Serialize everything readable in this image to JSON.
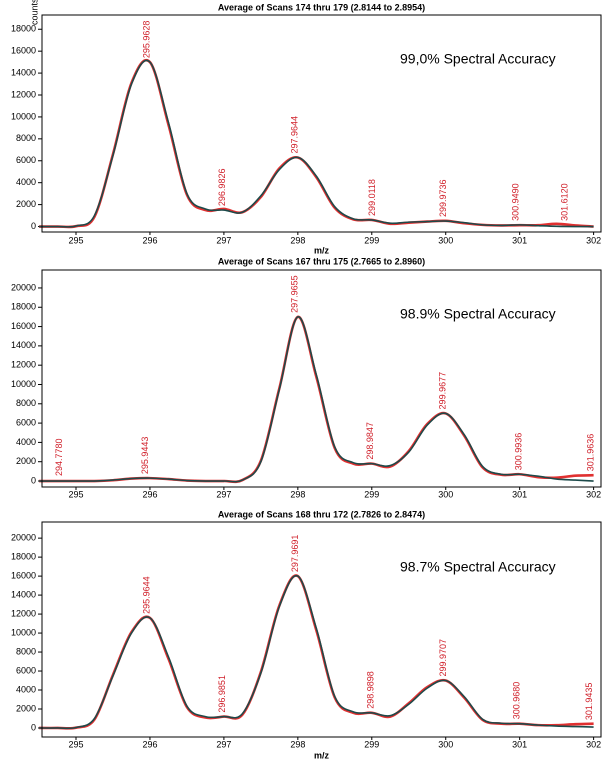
{
  "chart_data": [
    {
      "type": "line",
      "title": "Average of Scans 174 thru 179 (2.8144 to 2.8954)",
      "xlabel": "m/z",
      "ylabel": "counts",
      "annotation": "99,0% Spectral Accuracy",
      "x": [
        294.5,
        294.75,
        295,
        295.25,
        295.5,
        295.75,
        296,
        296.25,
        296.5,
        296.75,
        297,
        297.25,
        297.5,
        297.75,
        298,
        298.25,
        298.5,
        298.75,
        299,
        299.25,
        299.5,
        299.75,
        300,
        300.25,
        300.5,
        300.75,
        301,
        301.25,
        301.5,
        301.75,
        302
      ],
      "series": [
        {
          "name": "theoretical",
          "color": "#e03030",
          "values": [
            0,
            0,
            30,
            900,
            6600,
            13100,
            15000,
            9300,
            2900,
            1500,
            1600,
            1300,
            2700,
            5300,
            6300,
            4500,
            1700,
            650,
            600,
            250,
            350,
            450,
            520,
            300,
            150,
            100,
            120,
            120,
            250,
            100,
            0
          ]
        },
        {
          "name": "measured",
          "color": "#1d4a4a",
          "values": [
            0,
            0,
            50,
            1000,
            6500,
            13000,
            15000,
            9500,
            3000,
            1600,
            1500,
            1300,
            2800,
            5200,
            6300,
            4600,
            1800,
            700,
            600,
            300,
            400,
            450,
            500,
            350,
            150,
            100,
            150,
            80,
            20,
            0,
            0
          ]
        }
      ],
      "peak_labels": [
        {
          "value": 295.9628,
          "label": "295.9628"
        },
        {
          "value": 296.9826,
          "label": "296.9826"
        },
        {
          "value": 297.9644,
          "label": "297.9644"
        },
        {
          "value": 299.0118,
          "label": "299.0118"
        },
        {
          "value": 299.9736,
          "label": "299.9736"
        },
        {
          "value": 300.949,
          "label": "300.9490"
        },
        {
          "value": 301.612,
          "label": "301.6120"
        }
      ],
      "peak_heights": [
        15000,
        1500,
        6300,
        600,
        500,
        150,
        150
      ],
      "xlim": [
        294.54,
        302.1
      ],
      "ylim": [
        -500,
        19300
      ],
      "xticks": [
        295,
        296,
        297,
        298,
        299,
        300,
        301,
        302
      ],
      "yticks": [
        0,
        2000,
        4000,
        6000,
        8000,
        10000,
        12000,
        14000,
        16000,
        18000
      ]
    },
    {
      "type": "line",
      "title": "Average of Scans 167 thru 175 (2.7665 to 2.8960)",
      "annotation": "98.9% Spectral Accuracy",
      "x": [
        294.5,
        294.75,
        295,
        295.25,
        295.5,
        295.75,
        296,
        296.25,
        296.5,
        296.75,
        297,
        297.25,
        297.5,
        297.75,
        298,
        298.25,
        298.5,
        298.75,
        299,
        299.25,
        299.5,
        299.75,
        300,
        300.25,
        300.5,
        300.75,
        301,
        301.25,
        301.5,
        301.75,
        302
      ],
      "series": [
        {
          "name": "theoretical",
          "color": "#e03030",
          "values": [
            0,
            0,
            0,
            0,
            80,
            250,
            300,
            200,
            50,
            0,
            0,
            100,
            2100,
            9600,
            17000,
            10800,
            3400,
            1800,
            1800,
            1500,
            3100,
            5900,
            7000,
            4700,
            1400,
            650,
            700,
            400,
            350,
            550,
            600
          ]
        },
        {
          "name": "measured",
          "color": "#1d4a4a",
          "values": [
            0,
            0,
            0,
            0,
            100,
            250,
            300,
            200,
            50,
            0,
            0,
            100,
            2000,
            9500,
            17000,
            11000,
            3500,
            1900,
            1800,
            1600,
            3000,
            5800,
            7000,
            4800,
            1500,
            700,
            700,
            500,
            200,
            100,
            0
          ]
        }
      ],
      "peak_labels": [
        {
          "value": 294.778,
          "label": "294.7780"
        },
        {
          "value": 295.9443,
          "label": "295.9443"
        },
        {
          "value": 297.9655,
          "label": "297.9655"
        },
        {
          "value": 298.9847,
          "label": "298.9847"
        },
        {
          "value": 299.9677,
          "label": "299.9677"
        },
        {
          "value": 300.9936,
          "label": "300.9936"
        },
        {
          "value": 301.9636,
          "label": "301.9636"
        }
      ],
      "peak_heights": [
        100,
        300,
        17000,
        1800,
        7000,
        700,
        600
      ],
      "xlim": [
        294.54,
        302.1
      ],
      "ylim": [
        -620,
        21860
      ],
      "xticks": [
        295,
        296,
        297,
        298,
        299,
        300,
        301,
        302
      ],
      "yticks": [
        0,
        2000,
        4000,
        6000,
        8000,
        10000,
        12000,
        14000,
        16000,
        18000,
        20000
      ]
    },
    {
      "type": "line",
      "title": "Average of Scans 168 thru 172 (2.7826 to 2.8474)",
      "xlabel": "m/z",
      "annotation": "98.7% Spectral Accuracy",
      "x": [
        294.5,
        294.75,
        295,
        295.25,
        295.5,
        295.75,
        296,
        296.25,
        296.5,
        296.75,
        297,
        297.25,
        297.5,
        297.75,
        298,
        298.25,
        298.5,
        298.75,
        299,
        299.25,
        299.5,
        299.75,
        300,
        300.25,
        300.5,
        300.75,
        301,
        301.25,
        301.5,
        301.75,
        302
      ],
      "series": [
        {
          "name": "theoretical",
          "color": "#e03030",
          "values": [
            0,
            0,
            30,
            900,
            5600,
            10100,
            11600,
            7300,
            2200,
            1100,
            1200,
            1400,
            5900,
            12900,
            16000,
            10300,
            3200,
            1600,
            1600,
            1200,
            2600,
            4300,
            5000,
            3200,
            850,
            450,
            450,
            300,
            300,
            400,
            450
          ]
        },
        {
          "name": "measured",
          "color": "#1d4a4a",
          "values": [
            0,
            0,
            50,
            1000,
            5500,
            10000,
            11600,
            7500,
            2300,
            1200,
            1200,
            1500,
            5800,
            12800,
            16000,
            10500,
            3300,
            1700,
            1600,
            1300,
            2500,
            4200,
            5000,
            3300,
            900,
            500,
            450,
            300,
            200,
            150,
            100
          ]
        }
      ],
      "peak_labels": [
        {
          "value": 295.9644,
          "label": "295.9644"
        },
        {
          "value": 296.9851,
          "label": "296.9851"
        },
        {
          "value": 297.9691,
          "label": "297.9691"
        },
        {
          "value": 298.9898,
          "label": "298.9898"
        },
        {
          "value": 299.9707,
          "label": "299.9707"
        },
        {
          "value": 300.968,
          "label": "300.9680"
        },
        {
          "value": 301.9435,
          "label": "301.9435"
        }
      ],
      "peak_heights": [
        11600,
        1200,
        16000,
        1600,
        5000,
        500,
        400
      ],
      "xlim": [
        294.54,
        302.1
      ],
      "ylim": [
        -950,
        21700
      ],
      "xticks": [
        295,
        296,
        297,
        298,
        299,
        300,
        301,
        302
      ],
      "yticks": [
        0,
        2000,
        4000,
        6000,
        8000,
        10000,
        12000,
        14000,
        16000,
        18000,
        20000
      ]
    }
  ]
}
